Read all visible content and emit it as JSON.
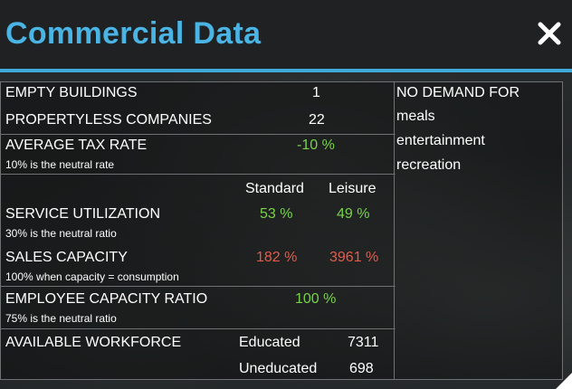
{
  "window": {
    "title": "Commercial Data"
  },
  "rows": {
    "empty_buildings": {
      "label": "EMPTY BUILDINGS",
      "value": "1"
    },
    "propertyless": {
      "label": "PROPERTYLESS COMPANIES",
      "value": "22"
    },
    "tax_rate": {
      "label": "AVERAGE TAX RATE",
      "sub": "10% is the neutral rate",
      "value": "-10 %"
    },
    "columns": {
      "standard": "Standard",
      "leisure": "Leisure"
    },
    "service_utilization": {
      "label": "SERVICE UTILIZATION",
      "sub": "30% is the neutral ratio",
      "standard": "53 %",
      "leisure": "49 %"
    },
    "sales_capacity": {
      "label": "SALES CAPACITY",
      "sub": "100% when capacity = consumption",
      "standard": "182 %",
      "leisure": "3961 %"
    },
    "employee_capacity": {
      "label": "EMPLOYEE CAPACITY RATIO",
      "sub": "75% is the neutral ratio",
      "value": "100 %"
    },
    "workforce": {
      "label": "AVAILABLE WORKFORCE",
      "educated_label": "Educated",
      "educated_value": "7311",
      "uneducated_label": "Uneducated",
      "uneducated_value": "698"
    }
  },
  "demand": {
    "heading": "NO DEMAND FOR",
    "items": [
      "meals",
      "entertainment",
      "recreation"
    ]
  },
  "colors": {
    "accent": "#4ab4e4",
    "positive": "#79d14a",
    "negative": "#e15c4a"
  },
  "icons": {
    "close": "close-icon"
  }
}
